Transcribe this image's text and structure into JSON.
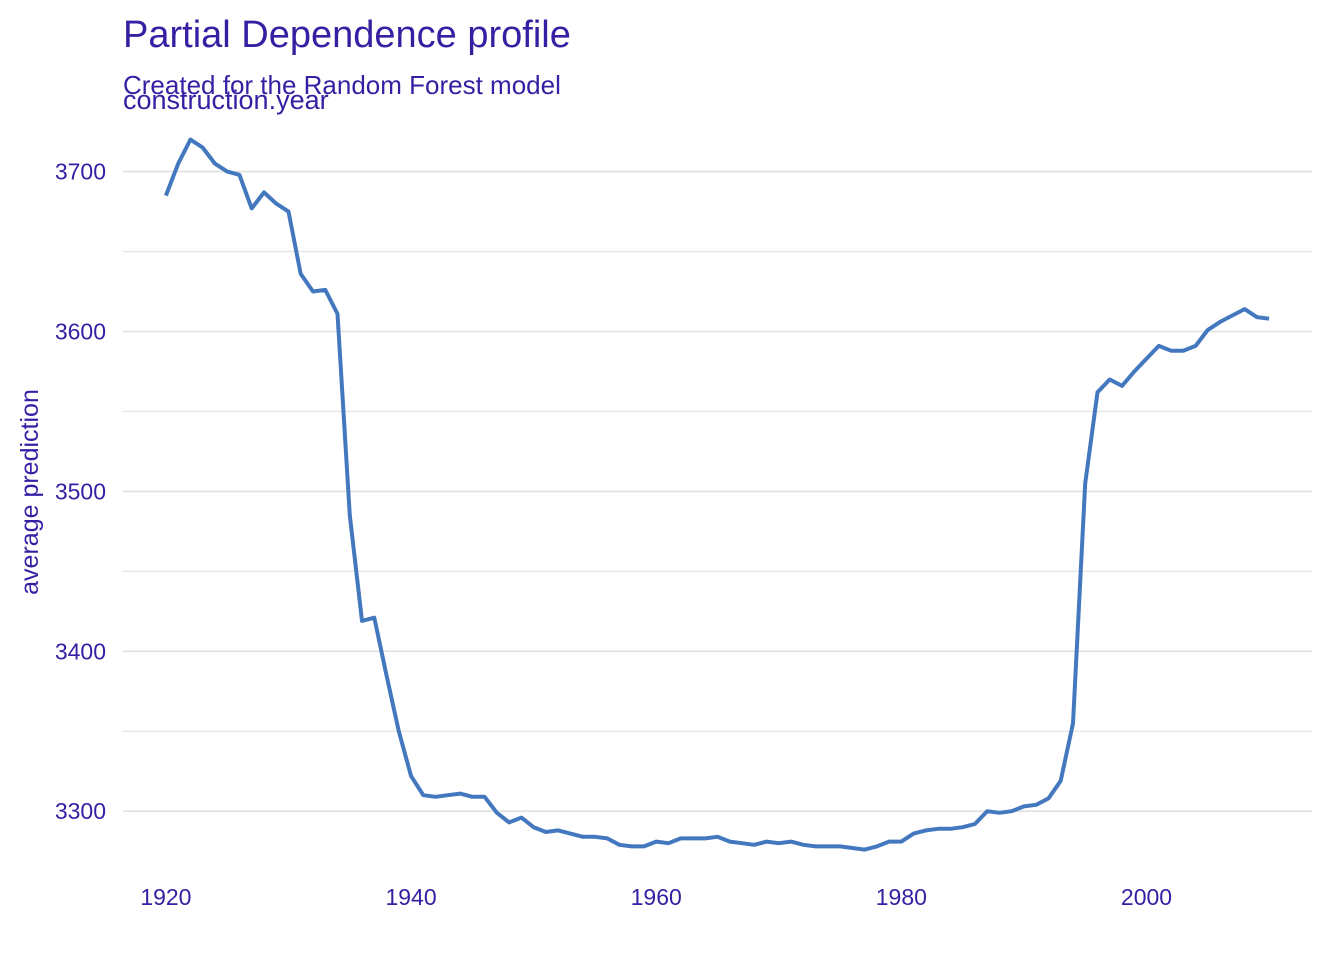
{
  "chart_data": {
    "type": "line",
    "title": "Partial Dependence profile",
    "subtitle": "Created for the Random Forest model",
    "facet_label": "construction.year",
    "xlabel": "",
    "ylabel": "average prediction",
    "xlim": [
      1916.5,
      2013.5
    ],
    "ylim": [
      3262,
      3726
    ],
    "x_ticks": [
      1920,
      1940,
      1960,
      1980,
      2000
    ],
    "y_ticks": [
      3300,
      3400,
      3500,
      3600,
      3700
    ],
    "y_minor_grid": [
      3350,
      3450,
      3550,
      3650
    ],
    "grid": "horizontal",
    "legend": "none",
    "line_color": "#4378bf",
    "series": [
      {
        "x": [
          1920,
          1921,
          1922,
          1923,
          1924,
          1925,
          1926,
          1927,
          1928,
          1929,
          1930,
          1931,
          1932,
          1933,
          1934,
          1935,
          1936,
          1937,
          1938,
          1939,
          1940,
          1941,
          1942,
          1943,
          1944,
          1945,
          1946,
          1947,
          1948,
          1949,
          1950,
          1951,
          1952,
          1953,
          1954,
          1955,
          1956,
          1957,
          1958,
          1959,
          1960,
          1961,
          1962,
          1963,
          1964,
          1965,
          1966,
          1967,
          1968,
          1969,
          1970,
          1971,
          1972,
          1973,
          1974,
          1975,
          1976,
          1977,
          1978,
          1979,
          1980,
          1981,
          1982,
          1983,
          1984,
          1985,
          1986,
          1987,
          1988,
          1989,
          1990,
          1991,
          1992,
          1993,
          1994,
          1995,
          1996,
          1997,
          1998,
          1999,
          2000,
          2001,
          2002,
          2003,
          2004,
          2005,
          2006,
          2007,
          2008,
          2009,
          2010
        ],
        "values": [
          3685,
          3705,
          3720,
          3715,
          3705,
          3700,
          3698,
          3677,
          3687,
          3680,
          3675,
          3636,
          3625,
          3626,
          3611,
          3485,
          3419,
          3421,
          3385,
          3350,
          3322,
          3310,
          3309,
          3310,
          3311,
          3309,
          3309,
          3299,
          3293,
          3296,
          3290,
          3287,
          3288,
          3286,
          3284,
          3284,
          3283,
          3279,
          3278,
          3278,
          3281,
          3280,
          3283,
          3283,
          3283,
          3284,
          3281,
          3280,
          3279,
          3281,
          3280,
          3281,
          3279,
          3278,
          3278,
          3278,
          3277,
          3276,
          3278,
          3281,
          3281,
          3286,
          3288,
          3289,
          3289,
          3290,
          3292,
          3300,
          3299,
          3300,
          3303,
          3304,
          3308,
          3319,
          3355,
          3505,
          3562,
          3570,
          3566,
          3575,
          3583,
          3591,
          3588,
          3588,
          3591,
          3601,
          3606,
          3610,
          3614,
          3609,
          3608
        ]
      }
    ]
  }
}
